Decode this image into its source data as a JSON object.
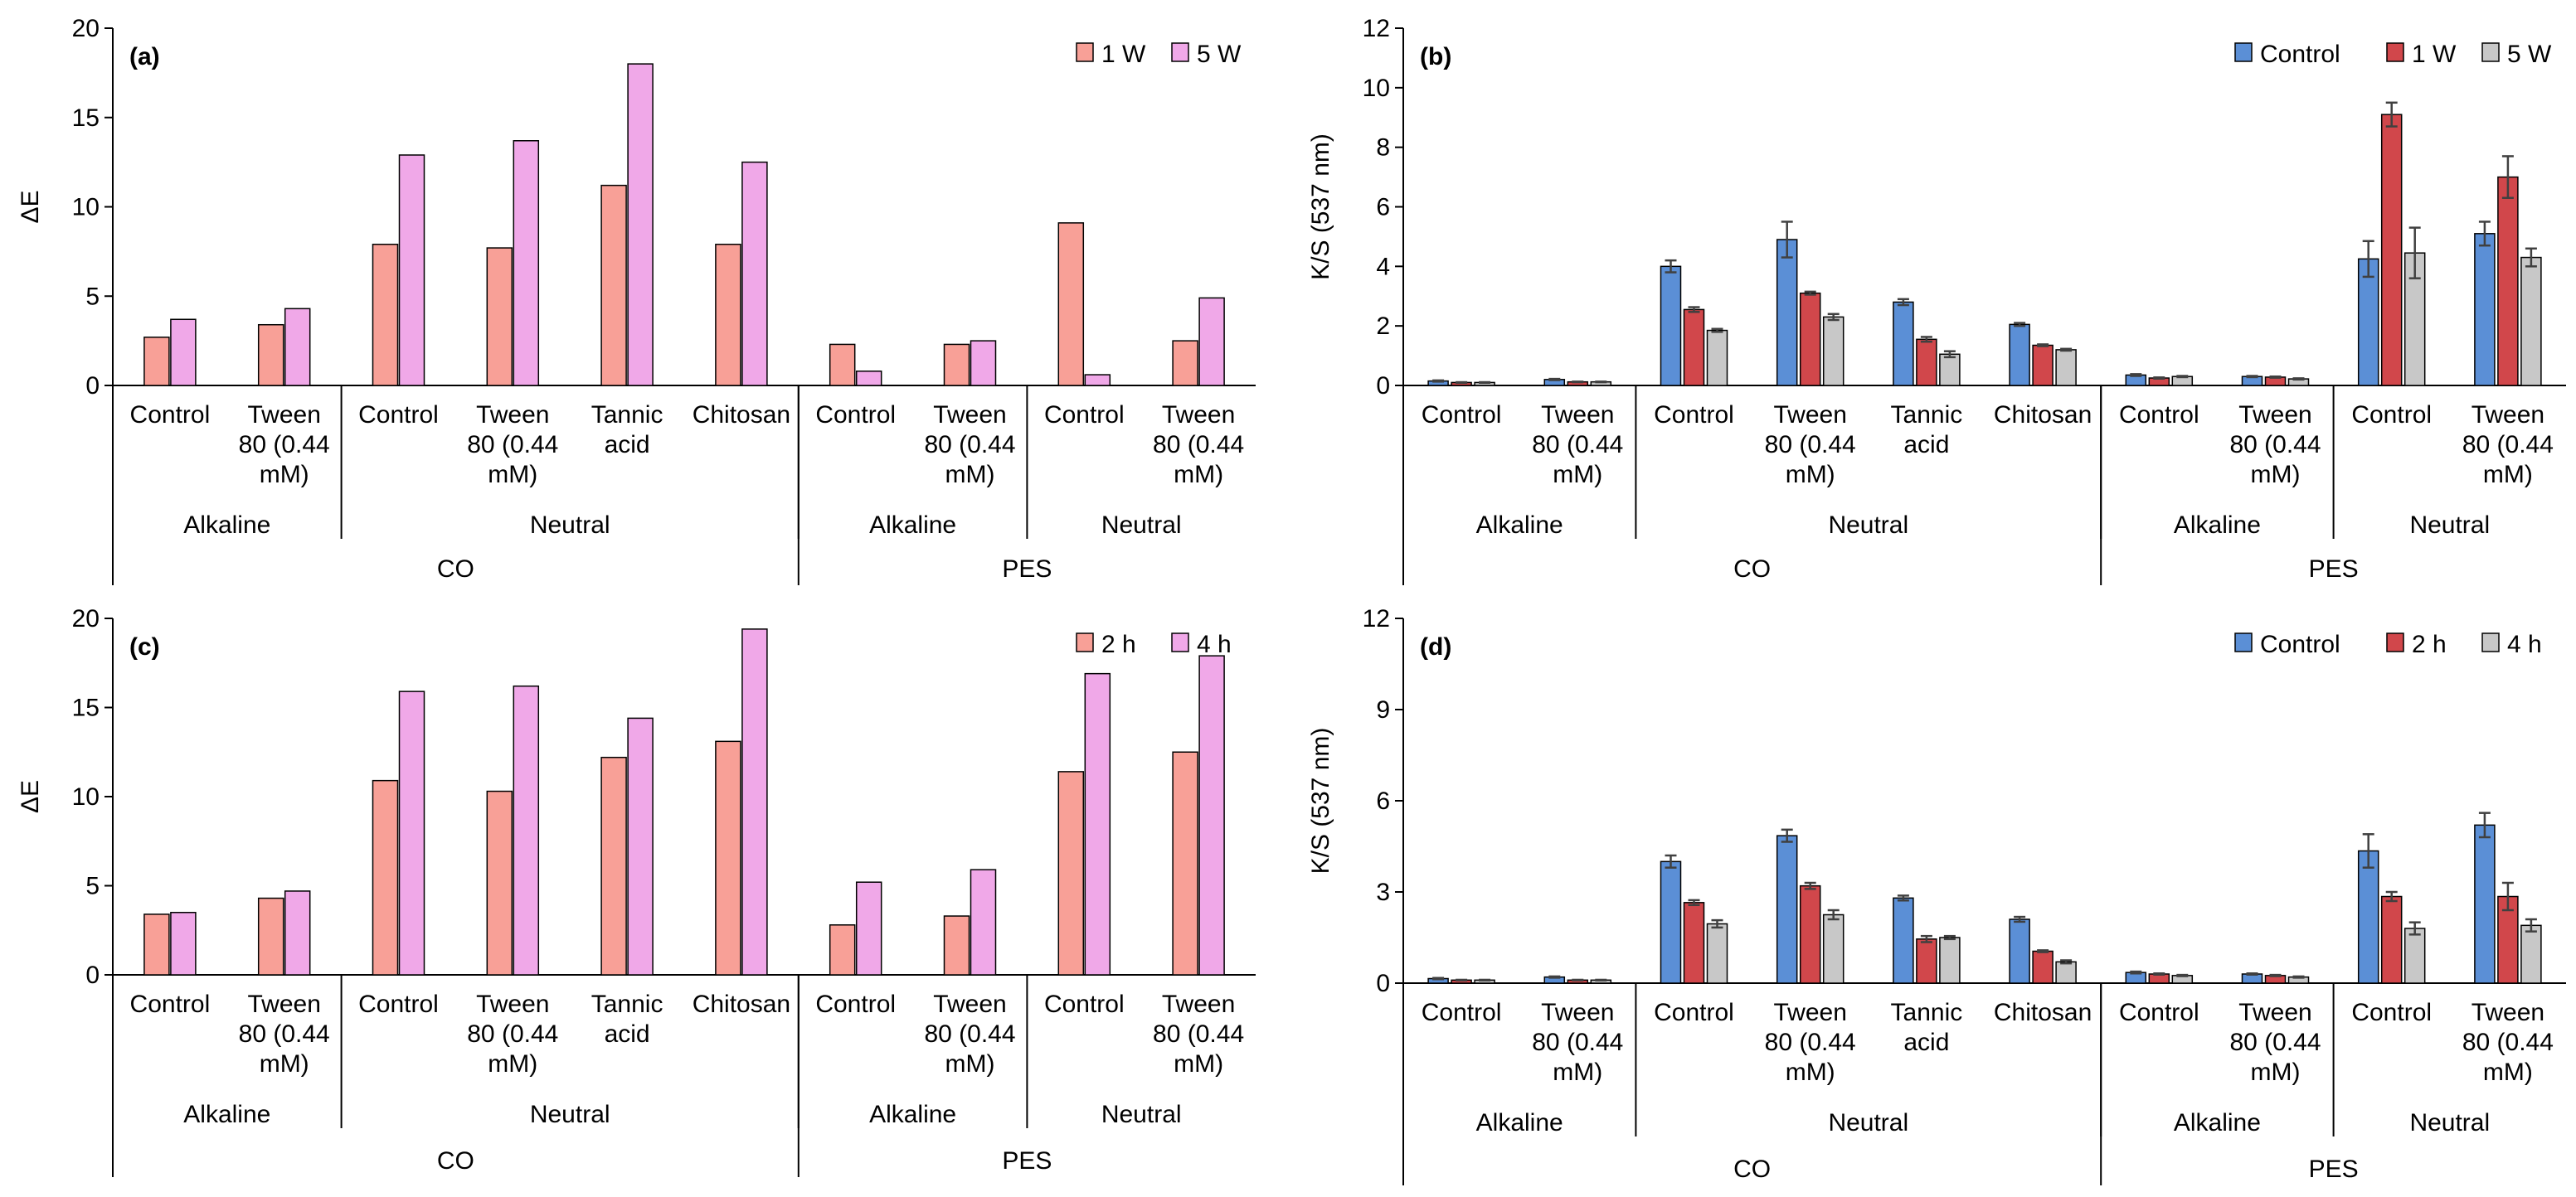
{
  "charts": [
    {
      "id": "a",
      "chart_data": {
        "type": "bar",
        "panel_label": "(a)",
        "ylabel": "ΔE",
        "ylim": [
          0,
          20
        ],
        "ytick_step": 5,
        "error_bars": false,
        "legend_position": "top-right",
        "categories": [
          "Control",
          "Tween 80 (0.44 mM)",
          "Control",
          "Tween 80 (0.44 mM)",
          "Tannic acid",
          "Chitosan",
          "Control",
          "Tween 80 (0.44 mM)",
          "Control",
          "Tween 80 (0.44 mM)"
        ],
        "category_lines": [
          [
            "Control"
          ],
          [
            "Tween",
            "80 (0.44",
            "mM)"
          ],
          [
            "Control"
          ],
          [
            "Tween",
            "80 (0.44",
            "mM)"
          ],
          [
            "Tannic",
            "acid"
          ],
          [
            "Chitosan"
          ],
          [
            "Control"
          ],
          [
            "Tween",
            "80 (0.44",
            "mM)"
          ],
          [
            "Control"
          ],
          [
            "Tween",
            "80 (0.44",
            "mM)"
          ]
        ],
        "group_level2": [
          {
            "label": "Alkaline",
            "count": 2
          },
          {
            "label": "Neutral",
            "count": 4
          },
          {
            "label": "Alkaline",
            "count": 2
          },
          {
            "label": "Neutral",
            "count": 2
          }
        ],
        "group_level3": [
          {
            "label": "CO",
            "count": 6
          },
          {
            "label": "PES",
            "count": 4
          }
        ],
        "series": [
          {
            "name": "1 W",
            "color": "#f8a097",
            "values": [
              2.7,
              3.4,
              7.9,
              7.7,
              11.2,
              7.9,
              2.3,
              2.3,
              9.1,
              2.5
            ]
          },
          {
            "name": "5 W",
            "color": "#f0a8e8",
            "values": [
              3.7,
              4.3,
              12.9,
              13.7,
              18.0,
              12.5,
              0.8,
              2.5,
              0.6,
              4.9
            ]
          }
        ]
      }
    },
    {
      "id": "b",
      "chart_data": {
        "type": "bar",
        "panel_label": "(b)",
        "ylabel": "K/S (537 nm)",
        "ylim": [
          0,
          12
        ],
        "ytick_step": 2,
        "error_bars": true,
        "legend_position": "top-right",
        "categories": [
          "Control",
          "Tween 80 (0.44 mM)",
          "Control",
          "Tween 80 (0.44 mM)",
          "Tannic acid",
          "Chitosan",
          "Control",
          "Tween 80 (0.44 mM)",
          "Control",
          "Tween 80 (0.44 mM)"
        ],
        "category_lines": [
          [
            "Control"
          ],
          [
            "Tween",
            "80      (0.44",
            "mM)"
          ],
          [
            "Control"
          ],
          [
            "Tween",
            "80      (0.44",
            "mM)"
          ],
          [
            "Tannic",
            "acid"
          ],
          [
            "Chitosan"
          ],
          [
            "Control"
          ],
          [
            "Tween",
            "80      (0.44",
            "mM)"
          ],
          [
            "Control"
          ],
          [
            "Tween",
            "80      (0.44",
            "mM)"
          ]
        ],
        "group_level2": [
          {
            "label": "Alkaline",
            "count": 2
          },
          {
            "label": "Neutral",
            "count": 4
          },
          {
            "label": "Alkaline",
            "count": 2
          },
          {
            "label": "Neutral",
            "count": 2
          }
        ],
        "group_level3": [
          {
            "label": "CO",
            "count": 6
          },
          {
            "label": "PES",
            "count": 4
          }
        ],
        "series": [
          {
            "name": "Control",
            "color": "#5b8fd6",
            "values": [
              0.15,
              0.2,
              4.0,
              4.9,
              2.8,
              2.05,
              0.35,
              0.3,
              4.25,
              5.1
            ],
            "errors": [
              0.02,
              0.02,
              0.2,
              0.6,
              0.1,
              0.05,
              0.03,
              0.02,
              0.6,
              0.4
            ]
          },
          {
            "name": "1 W",
            "color": "#d1474b",
            "values": [
              0.1,
              0.12,
              2.55,
              3.1,
              1.55,
              1.35,
              0.25,
              0.28,
              9.1,
              7.0
            ],
            "errors": [
              0.01,
              0.01,
              0.08,
              0.05,
              0.08,
              0.03,
              0.02,
              0.02,
              0.4,
              0.7
            ]
          },
          {
            "name": "5 W",
            "color": "#c8c8c8",
            "values": [
              0.1,
              0.12,
              1.85,
              2.3,
              1.05,
              1.2,
              0.3,
              0.22,
              4.45,
              4.3
            ],
            "errors": [
              0.01,
              0.01,
              0.05,
              0.1,
              0.1,
              0.03,
              0.02,
              0.02,
              0.85,
              0.3
            ]
          }
        ]
      }
    },
    {
      "id": "c",
      "chart_data": {
        "type": "bar",
        "panel_label": "(c)",
        "ylabel": "ΔE",
        "ylim": [
          0,
          20
        ],
        "ytick_step": 5,
        "error_bars": false,
        "legend_position": "top-right",
        "categories": [
          "Control",
          "Tween 80 (0.44 mM)",
          "Control",
          "Tween 80 (0.44 mM)",
          "Tannic acid",
          "Chitosan",
          "Control",
          "Tween 80 (0.44 mM)",
          "Control",
          "Tween 80 (0.44 mM)"
        ],
        "category_lines": [
          [
            "Control"
          ],
          [
            "Tween",
            "80 (0.44",
            "mM)"
          ],
          [
            "Control"
          ],
          [
            "Tween",
            "80 (0.44",
            "mM)"
          ],
          [
            "Tannic",
            "acid"
          ],
          [
            "Chitosan"
          ],
          [
            "Control"
          ],
          [
            "Tween",
            "80 (0.44",
            "mM)"
          ],
          [
            "Control"
          ],
          [
            "Tween",
            "80 (0.44",
            "mM)"
          ]
        ],
        "group_level2": [
          {
            "label": "Alkaline",
            "count": 2
          },
          {
            "label": "Neutral",
            "count": 4
          },
          {
            "label": "Alkaline",
            "count": 2
          },
          {
            "label": "Neutral",
            "count": 2
          }
        ],
        "group_level3": [
          {
            "label": "CO",
            "count": 6
          },
          {
            "label": "PES",
            "count": 4
          }
        ],
        "series": [
          {
            "name": "2 h",
            "color": "#f8a097",
            "values": [
              3.4,
              4.3,
              10.9,
              10.3,
              12.2,
              13.1,
              2.8,
              3.3,
              11.4,
              12.5
            ]
          },
          {
            "name": "4 h",
            "color": "#f0a8e8",
            "values": [
              3.5,
              4.7,
              15.9,
              16.2,
              14.4,
              19.4,
              5.2,
              5.9,
              16.9,
              17.9
            ]
          }
        ]
      }
    },
    {
      "id": "d",
      "chart_data": {
        "type": "bar",
        "panel_label": "(d)",
        "ylabel": "K/S (537 nm)",
        "ylim": [
          0,
          12
        ],
        "ytick_step": 3,
        "error_bars": true,
        "legend_position": "top-right",
        "categories": [
          "Control",
          "Tween 80 (0.44 mM)",
          "Control",
          "Tween 80 (0.44 mM)",
          "Tannic acid",
          "Chitosan",
          "Control",
          "Tween 80 (0.44 mM)",
          "Control",
          "Tween 80 (0.44 mM)"
        ],
        "category_lines": [
          [
            "Control"
          ],
          [
            "Tween",
            "80 (0.44",
            "mM)"
          ],
          [
            "Control"
          ],
          [
            "Tween",
            "80 (0.44",
            "mM)"
          ],
          [
            "Tannic",
            "acid"
          ],
          [
            "Chitosan"
          ],
          [
            "Control"
          ],
          [
            "Tween",
            "80 (0.44",
            "mM)"
          ],
          [
            "Control"
          ],
          [
            "Tween",
            "80 (0.44",
            "mM)"
          ]
        ],
        "group_level2": [
          {
            "label": "Alkaline",
            "count": 2
          },
          {
            "label": "Neutral",
            "count": 4
          },
          {
            "label": "Alkaline",
            "count": 2
          },
          {
            "label": "Neutral",
            "count": 2
          }
        ],
        "group_level3": [
          {
            "label": "CO",
            "count": 6
          },
          {
            "label": "PES",
            "count": 4
          }
        ],
        "series": [
          {
            "name": "Control",
            "color": "#5b8fd6",
            "values": [
              0.15,
              0.2,
              4.0,
              4.85,
              2.8,
              2.1,
              0.35,
              0.3,
              4.35,
              5.2
            ],
            "errors": [
              0.02,
              0.02,
              0.2,
              0.2,
              0.08,
              0.08,
              0.03,
              0.02,
              0.55,
              0.4
            ]
          },
          {
            "name": "2 h",
            "color": "#d1474b",
            "values": [
              0.1,
              0.1,
              2.65,
              3.2,
              1.45,
              1.05,
              0.3,
              0.25,
              2.85,
              2.85
            ],
            "errors": [
              0.01,
              0.01,
              0.08,
              0.1,
              0.1,
              0.03,
              0.02,
              0.02,
              0.15,
              0.45
            ]
          },
          {
            "name": "4 h",
            "color": "#c8c8c8",
            "values": [
              0.1,
              0.1,
              1.95,
              2.25,
              1.5,
              0.7,
              0.25,
              0.2,
              1.8,
              1.9
            ],
            "errors": [
              0.01,
              0.01,
              0.12,
              0.15,
              0.05,
              0.05,
              0.02,
              0.02,
              0.2,
              0.2
            ]
          }
        ]
      }
    }
  ]
}
